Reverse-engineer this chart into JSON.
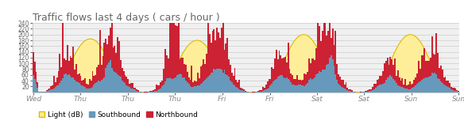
{
  "title": "Traffic flows last 4 days ( cars / hour )",
  "title_fontsize": 9,
  "ylim": [
    0,
    240
  ],
  "yticks": [
    20,
    40,
    60,
    80,
    100,
    120,
    140,
    160,
    180,
    200,
    220,
    240
  ],
  "n_points": 288,
  "hours_per_day": 24,
  "days": 4,
  "background_color": "#ffffff",
  "plot_bg_color": "#f0f0f0",
  "grid_color": "#cccccc",
  "southbound_color": "#6699bb",
  "northbound_color": "#cc2233",
  "light_color": "#ffee99",
  "light_edge_color": "#ddbb00",
  "legend_items": [
    "Light (dB)",
    "Southbound",
    "Northbound"
  ],
  "xtick_labels": [
    "Wed",
    "Thu",
    "Thu",
    "Thu",
    "Fri",
    "Fri",
    "Sat",
    "Sat",
    "Sun",
    "Sun"
  ],
  "xtick_positions_frac": [
    0.0,
    0.111,
    0.222,
    0.333,
    0.444,
    0.556,
    0.667,
    0.778,
    0.889,
    1.0
  ]
}
